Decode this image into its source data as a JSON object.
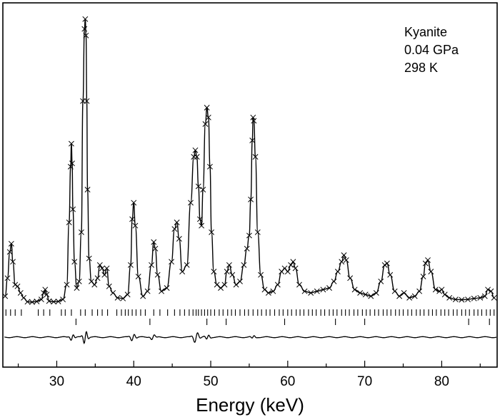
{
  "chart_data": {
    "type": "line",
    "title": "",
    "xlabel": "Energy (keV)",
    "ylabel": "",
    "xlim": [
      23.0,
      87.2
    ],
    "x_ticks": [
      30,
      40,
      50,
      60,
      70,
      80
    ],
    "grid": false,
    "annotations": [
      "Kyanite",
      "0.04 GPa",
      "298 K"
    ],
    "series": [
      {
        "role": "observed",
        "marker": "x",
        "x": [
          23.3,
          23.6,
          23.9,
          24.1,
          24.3,
          24.6,
          24.9,
          25.3,
          25.7,
          26.2,
          26.8,
          27.4,
          28.0,
          28.3,
          28.5,
          28.7,
          29.0,
          29.6,
          30.2,
          30.8,
          31.3,
          31.6,
          31.8,
          31.9,
          32.0,
          32.1,
          32.3,
          32.6,
          32.9,
          33.2,
          33.4,
          33.6,
          33.7,
          33.8,
          33.9,
          34.0,
          34.2,
          34.5,
          34.9,
          35.3,
          35.6,
          35.9,
          36.2,
          36.5,
          36.8,
          37.3,
          37.9,
          38.6,
          39.2,
          39.6,
          39.8,
          40.0,
          40.2,
          40.6,
          41.2,
          41.8,
          42.3,
          42.6,
          42.8,
          43.1,
          43.6,
          44.3,
          44.9,
          45.3,
          45.6,
          45.9,
          46.3,
          46.9,
          47.4,
          47.8,
          48.0,
          48.2,
          48.4,
          48.6,
          48.8,
          49.0,
          49.3,
          49.5,
          49.7,
          49.9,
          50.1,
          50.4,
          50.8,
          51.3,
          51.8,
          52.1,
          52.4,
          52.8,
          53.3,
          53.8,
          54.3,
          54.7,
          55.0,
          55.2,
          55.4,
          55.5,
          55.6,
          55.8,
          56.1,
          56.5,
          57.0,
          57.5,
          58.1,
          58.7,
          59.2,
          59.6,
          60.0,
          60.4,
          60.7,
          61.0,
          61.5,
          62.2,
          63.0,
          63.8,
          64.6,
          65.4,
          66.0,
          66.5,
          67.0,
          67.3,
          67.6,
          68.1,
          68.7,
          69.4,
          70.1,
          70.8,
          71.5,
          72.1,
          72.6,
          72.9,
          73.3,
          73.9,
          74.5,
          75.1,
          75.8,
          76.5,
          77.1,
          77.6,
          77.9,
          78.2,
          78.6,
          79.2,
          79.7,
          80.0,
          80.4,
          81.0,
          81.8,
          82.6,
          83.4,
          84.2,
          85.0,
          85.6,
          86.0,
          86.4,
          86.8
        ],
        "y": [
          0.025,
          0.08,
          0.16,
          0.185,
          0.13,
          0.06,
          0.055,
          0.035,
          0.02,
          0.008,
          0.007,
          0.009,
          0.015,
          0.035,
          0.045,
          0.03,
          0.01,
          0.008,
          0.009,
          0.015,
          0.06,
          0.25,
          0.42,
          0.49,
          0.43,
          0.29,
          0.13,
          0.05,
          0.07,
          0.22,
          0.62,
          0.84,
          0.87,
          0.82,
          0.62,
          0.35,
          0.14,
          0.07,
          0.06,
          0.08,
          0.12,
          0.11,
          0.09,
          0.11,
          0.055,
          0.035,
          0.02,
          0.018,
          0.03,
          0.12,
          0.26,
          0.31,
          0.24,
          0.085,
          0.025,
          0.04,
          0.12,
          0.19,
          0.17,
          0.09,
          0.04,
          0.05,
          0.13,
          0.23,
          0.25,
          0.2,
          0.1,
          0.12,
          0.31,
          0.45,
          0.47,
          0.45,
          0.36,
          0.26,
          0.24,
          0.35,
          0.55,
          0.6,
          0.57,
          0.42,
          0.22,
          0.1,
          0.06,
          0.05,
          0.06,
          0.1,
          0.12,
          0.09,
          0.06,
          0.07,
          0.12,
          0.17,
          0.21,
          0.32,
          0.5,
          0.57,
          0.56,
          0.45,
          0.22,
          0.09,
          0.045,
          0.035,
          0.04,
          0.06,
          0.1,
          0.11,
          0.1,
          0.12,
          0.13,
          0.11,
          0.06,
          0.04,
          0.035,
          0.04,
          0.045,
          0.05,
          0.07,
          0.1,
          0.13,
          0.15,
          0.135,
          0.08,
          0.045,
          0.035,
          0.03,
          0.025,
          0.035,
          0.07,
          0.12,
          0.125,
          0.09,
          0.04,
          0.025,
          0.035,
          0.02,
          0.025,
          0.04,
          0.085,
          0.125,
          0.135,
          0.1,
          0.045,
          0.04,
          0.045,
          0.03,
          0.02,
          0.015,
          0.014,
          0.015,
          0.018,
          0.02,
          0.025,
          0.045,
          0.04,
          0.02
        ]
      },
      {
        "role": "calculated",
        "marker": "none"
      },
      {
        "role": "difference",
        "marker": "none",
        "offset": -0.1
      }
    ],
    "reflection_ticks": {
      "row1": [
        23.4,
        24.0,
        24.6,
        25.4,
        27.6,
        28.3,
        29.1,
        30.6,
        31.1,
        31.9,
        33.1,
        33.7,
        34.6,
        35.3,
        35.9,
        36.6,
        37.8,
        38.4,
        38.9,
        39.3,
        39.8,
        40.3,
        40.9,
        41.5,
        42.6,
        43.4,
        44.4,
        45.3,
        46.0,
        46.6,
        47.2,
        47.7,
        48.1,
        48.4,
        48.8,
        49.2,
        49.6,
        50.0,
        50.5,
        51.1,
        51.6,
        52.2,
        52.7,
        53.2,
        53.8,
        54.4,
        54.9,
        55.5,
        56.1,
        56.6,
        57.2,
        57.7,
        58.3,
        58.9,
        59.4,
        60.0,
        60.5,
        61.1,
        61.6,
        62.1,
        62.7,
        63.2,
        63.7,
        64.3,
        64.8,
        65.4,
        65.9,
        66.4,
        67.0,
        67.5,
        68.0,
        68.6,
        69.1,
        69.7,
        70.2,
        70.7,
        71.3,
        71.8,
        72.4,
        72.9,
        73.4,
        74.0,
        74.5,
        75.0,
        75.6,
        76.1,
        76.7,
        77.2,
        77.7,
        78.3,
        78.8,
        79.3,
        79.9,
        80.4,
        80.9,
        81.5,
        82.0,
        82.6,
        83.1,
        83.6,
        84.2,
        84.7,
        85.2,
        85.8,
        86.3,
        86.8
      ],
      "row2": [
        32.5,
        42.1,
        49.5,
        52.0,
        59.6,
        66.2,
        70.0,
        83.5,
        86.2
      ]
    }
  }
}
